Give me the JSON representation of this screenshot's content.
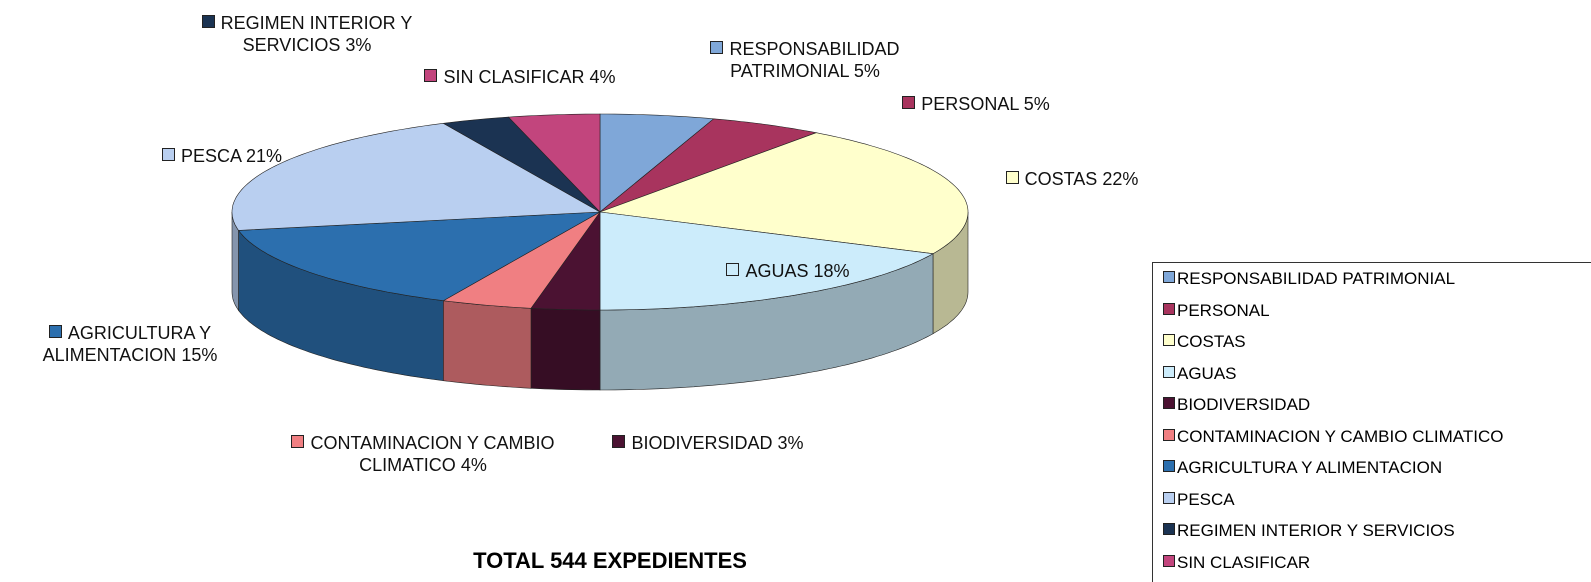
{
  "chart_data": {
    "type": "pie",
    "title": "TOTAL 544 EXPEDIENTES",
    "categories": [
      "RESPONSABILIDAD PATRIMONIAL",
      "PERSONAL",
      "COSTAS",
      "AGUAS",
      "BIODIVERSIDAD",
      "CONTAMINACION Y CAMBIO CLIMATICO",
      "AGRICULTURA Y ALIMENTACION",
      "PESCA",
      "REGIMEN INTERIOR Y SERVICIOS",
      "SIN CLASIFICAR"
    ],
    "values": [
      5,
      5,
      22,
      18,
      3,
      4,
      15,
      21,
      3,
      4
    ],
    "value_labels": [
      "5%",
      "5%",
      "22%",
      "18%",
      "3%",
      "4%",
      "15%",
      "21%",
      "3%",
      "4%"
    ],
    "colors": [
      "#7fa7d8",
      "#a8345e",
      "#ffffcc",
      "#ccecfb",
      "#4b1232",
      "#f07f82",
      "#2c6fae",
      "#b9cff0",
      "#1b3352",
      "#c2457d"
    ],
    "legend": "right"
  }
}
